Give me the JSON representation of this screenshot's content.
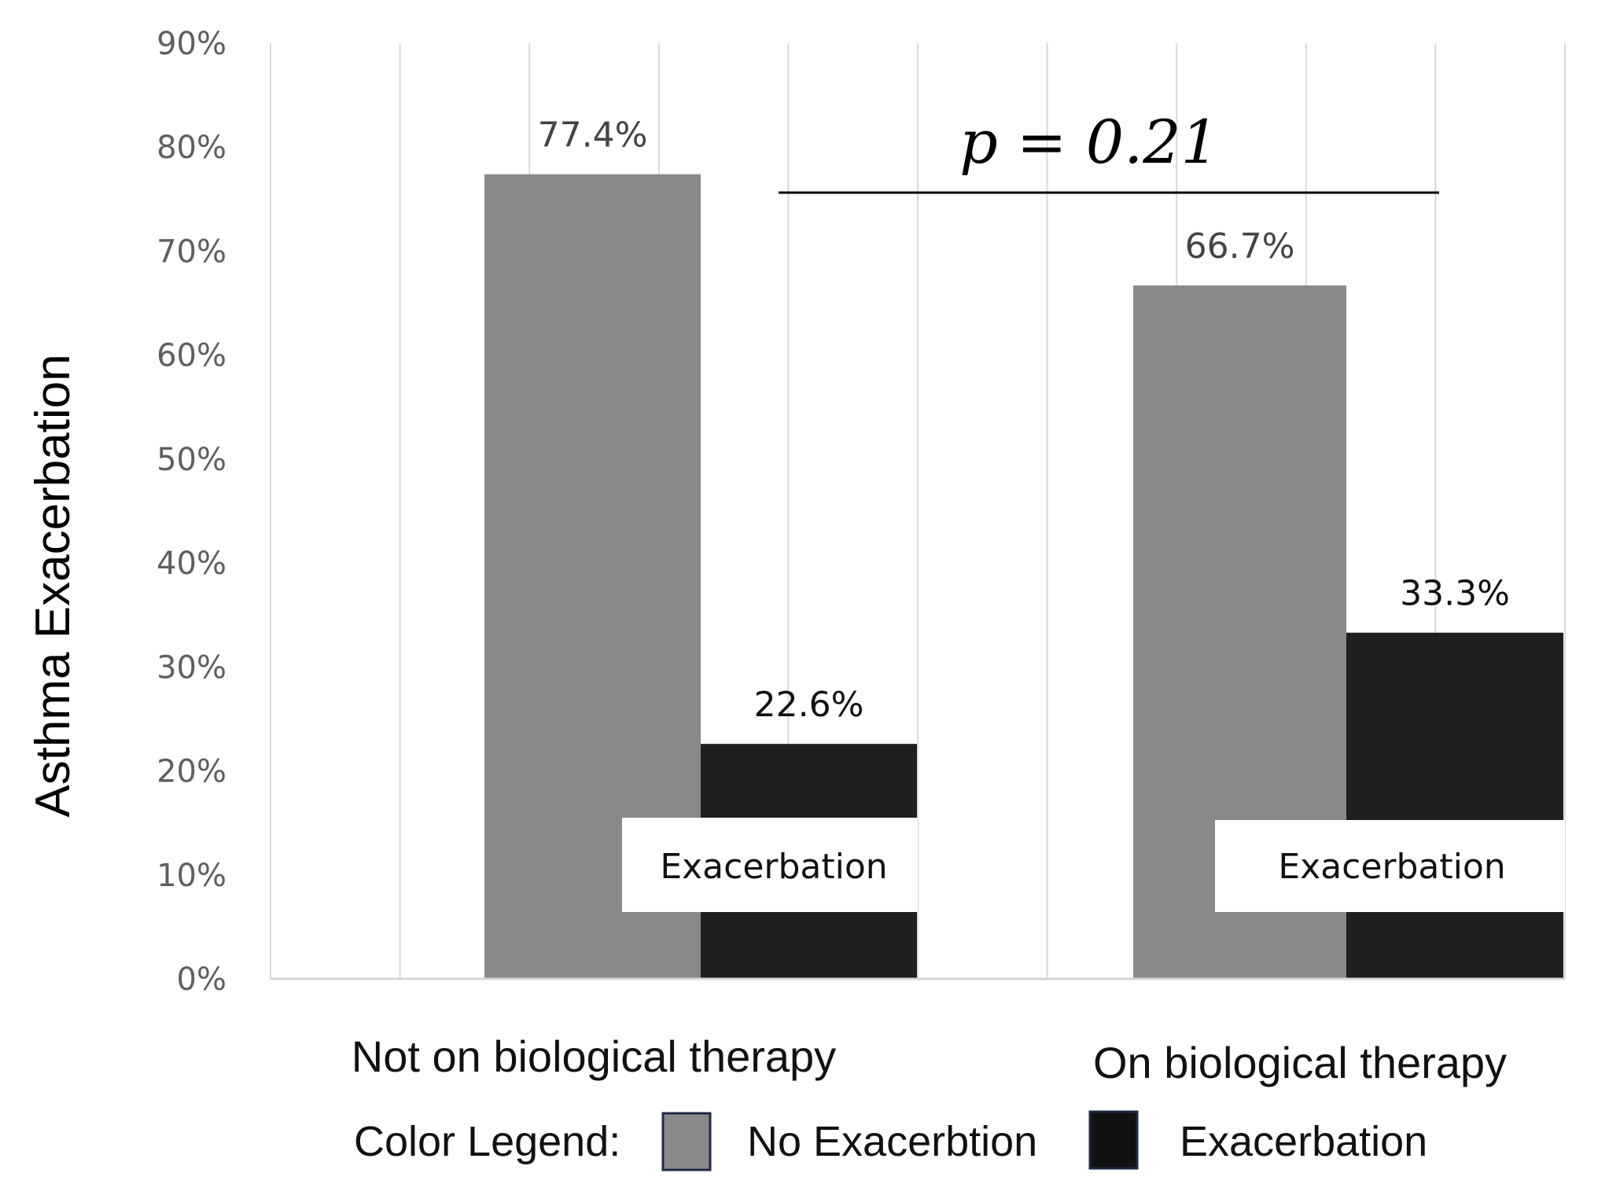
{
  "chart_data": {
    "type": "bar",
    "title": "",
    "xlabel": "",
    "ylabel": "Asthma Exacerbation",
    "ylim": [
      0,
      90
    ],
    "yticks": [
      "0%",
      "10%",
      "20%",
      "30%",
      "40%",
      "50%",
      "60%",
      "70%",
      "80%",
      "90%"
    ],
    "categories": [
      "Not on biological therapy",
      "On biological therapy"
    ],
    "series": [
      {
        "name": "No Exacerbtion",
        "color": "#898989",
        "values": [
          77.4,
          66.7
        ],
        "labels": [
          "77.4%",
          "66.7%"
        ]
      },
      {
        "name": "Exacerbation",
        "color": "#1f1f1f",
        "values": [
          22.6,
          33.3
        ],
        "labels": [
          "22.6%",
          "33.3%"
        ]
      }
    ],
    "annotation": "p = 0.21",
    "overlay_labels": [
      "Exacerbation",
      "Exacerbation"
    ],
    "legend": {
      "title": "Color Legend:",
      "items": [
        {
          "label": "No Exacerbtion",
          "color": "#898989"
        },
        {
          "label": "Exacerbation",
          "color": "#111111"
        }
      ]
    },
    "grid": true
  }
}
